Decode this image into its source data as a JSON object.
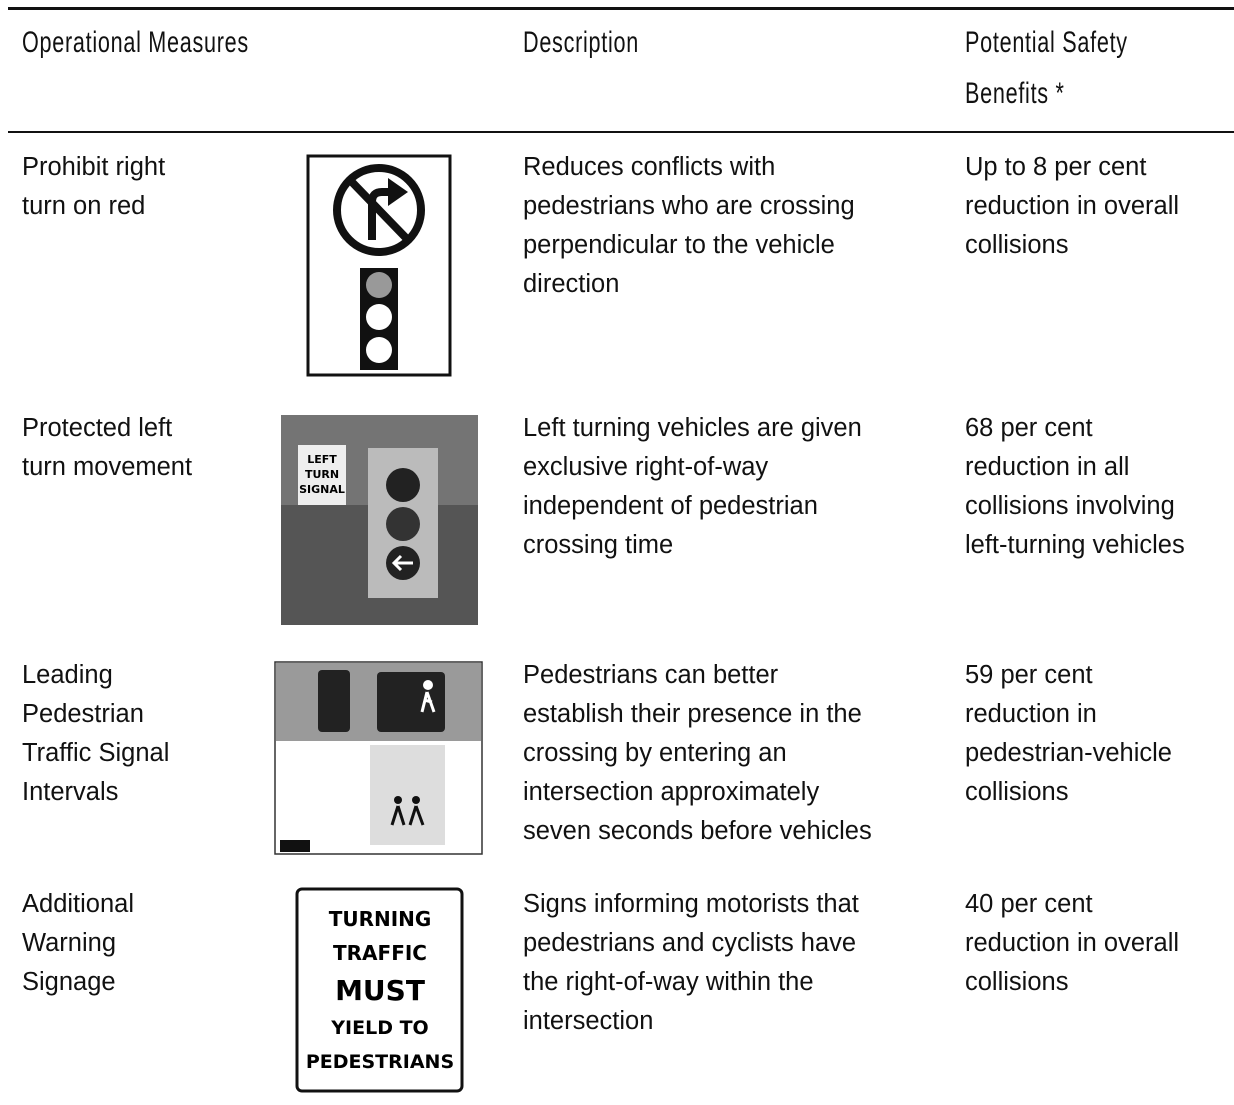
{
  "header": {
    "columns": [
      [
        "Operational Measures"
      ],
      [
        "Description"
      ],
      [
        "Potential Safety",
        "Benefits *"
      ]
    ]
  },
  "table": {
    "rows": [
      {
        "measure": [
          "Prohibit right",
          "turn on red"
        ],
        "description": [
          "Reduces conflicts with",
          "pedestrians who are crossing",
          "perpendicular to the vehicle",
          "direction"
        ],
        "benefit": [
          "Up to 8 per cent",
          "reduction in overall",
          "collisions"
        ]
      },
      {
        "measure": [
          "Protected left",
          "turn movement"
        ],
        "description": [
          "Left turning vehicles are given",
          "exclusive right-of-way",
          "independent of pedestrian",
          "crossing time"
        ],
        "benefit": [
          "68 per cent",
          "reduction in all",
          "collisions involving",
          "left-turning vehicles"
        ],
        "sign": [
          "LEFT",
          "TURN",
          "SIGNAL"
        ]
      },
      {
        "measure": [
          "Leading",
          "Pedestrian",
          "Traffic Signal",
          "Intervals"
        ],
        "description": [
          "Pedestrians can better",
          "establish their presence in the",
          "crossing by entering an",
          "intersection approximately",
          "seven seconds before vehicles"
        ],
        "benefit": [
          "59 per cent",
          "reduction in",
          "pedestrian-vehicle",
          "collisions"
        ]
      },
      {
        "measure": [
          "Additional",
          "Warning",
          "Signage"
        ],
        "description": [
          "Signs informing motorists that",
          "pedestrians and cyclists have",
          "the right-of-way within the",
          "intersection"
        ],
        "benefit": [
          "40 per cent",
          "reduction in overall",
          "collisions"
        ],
        "sign": [
          "TURNING",
          "TRAFFIC",
          "MUST",
          "YIELD TO",
          "PEDESTRIANS"
        ]
      }
    ]
  }
}
